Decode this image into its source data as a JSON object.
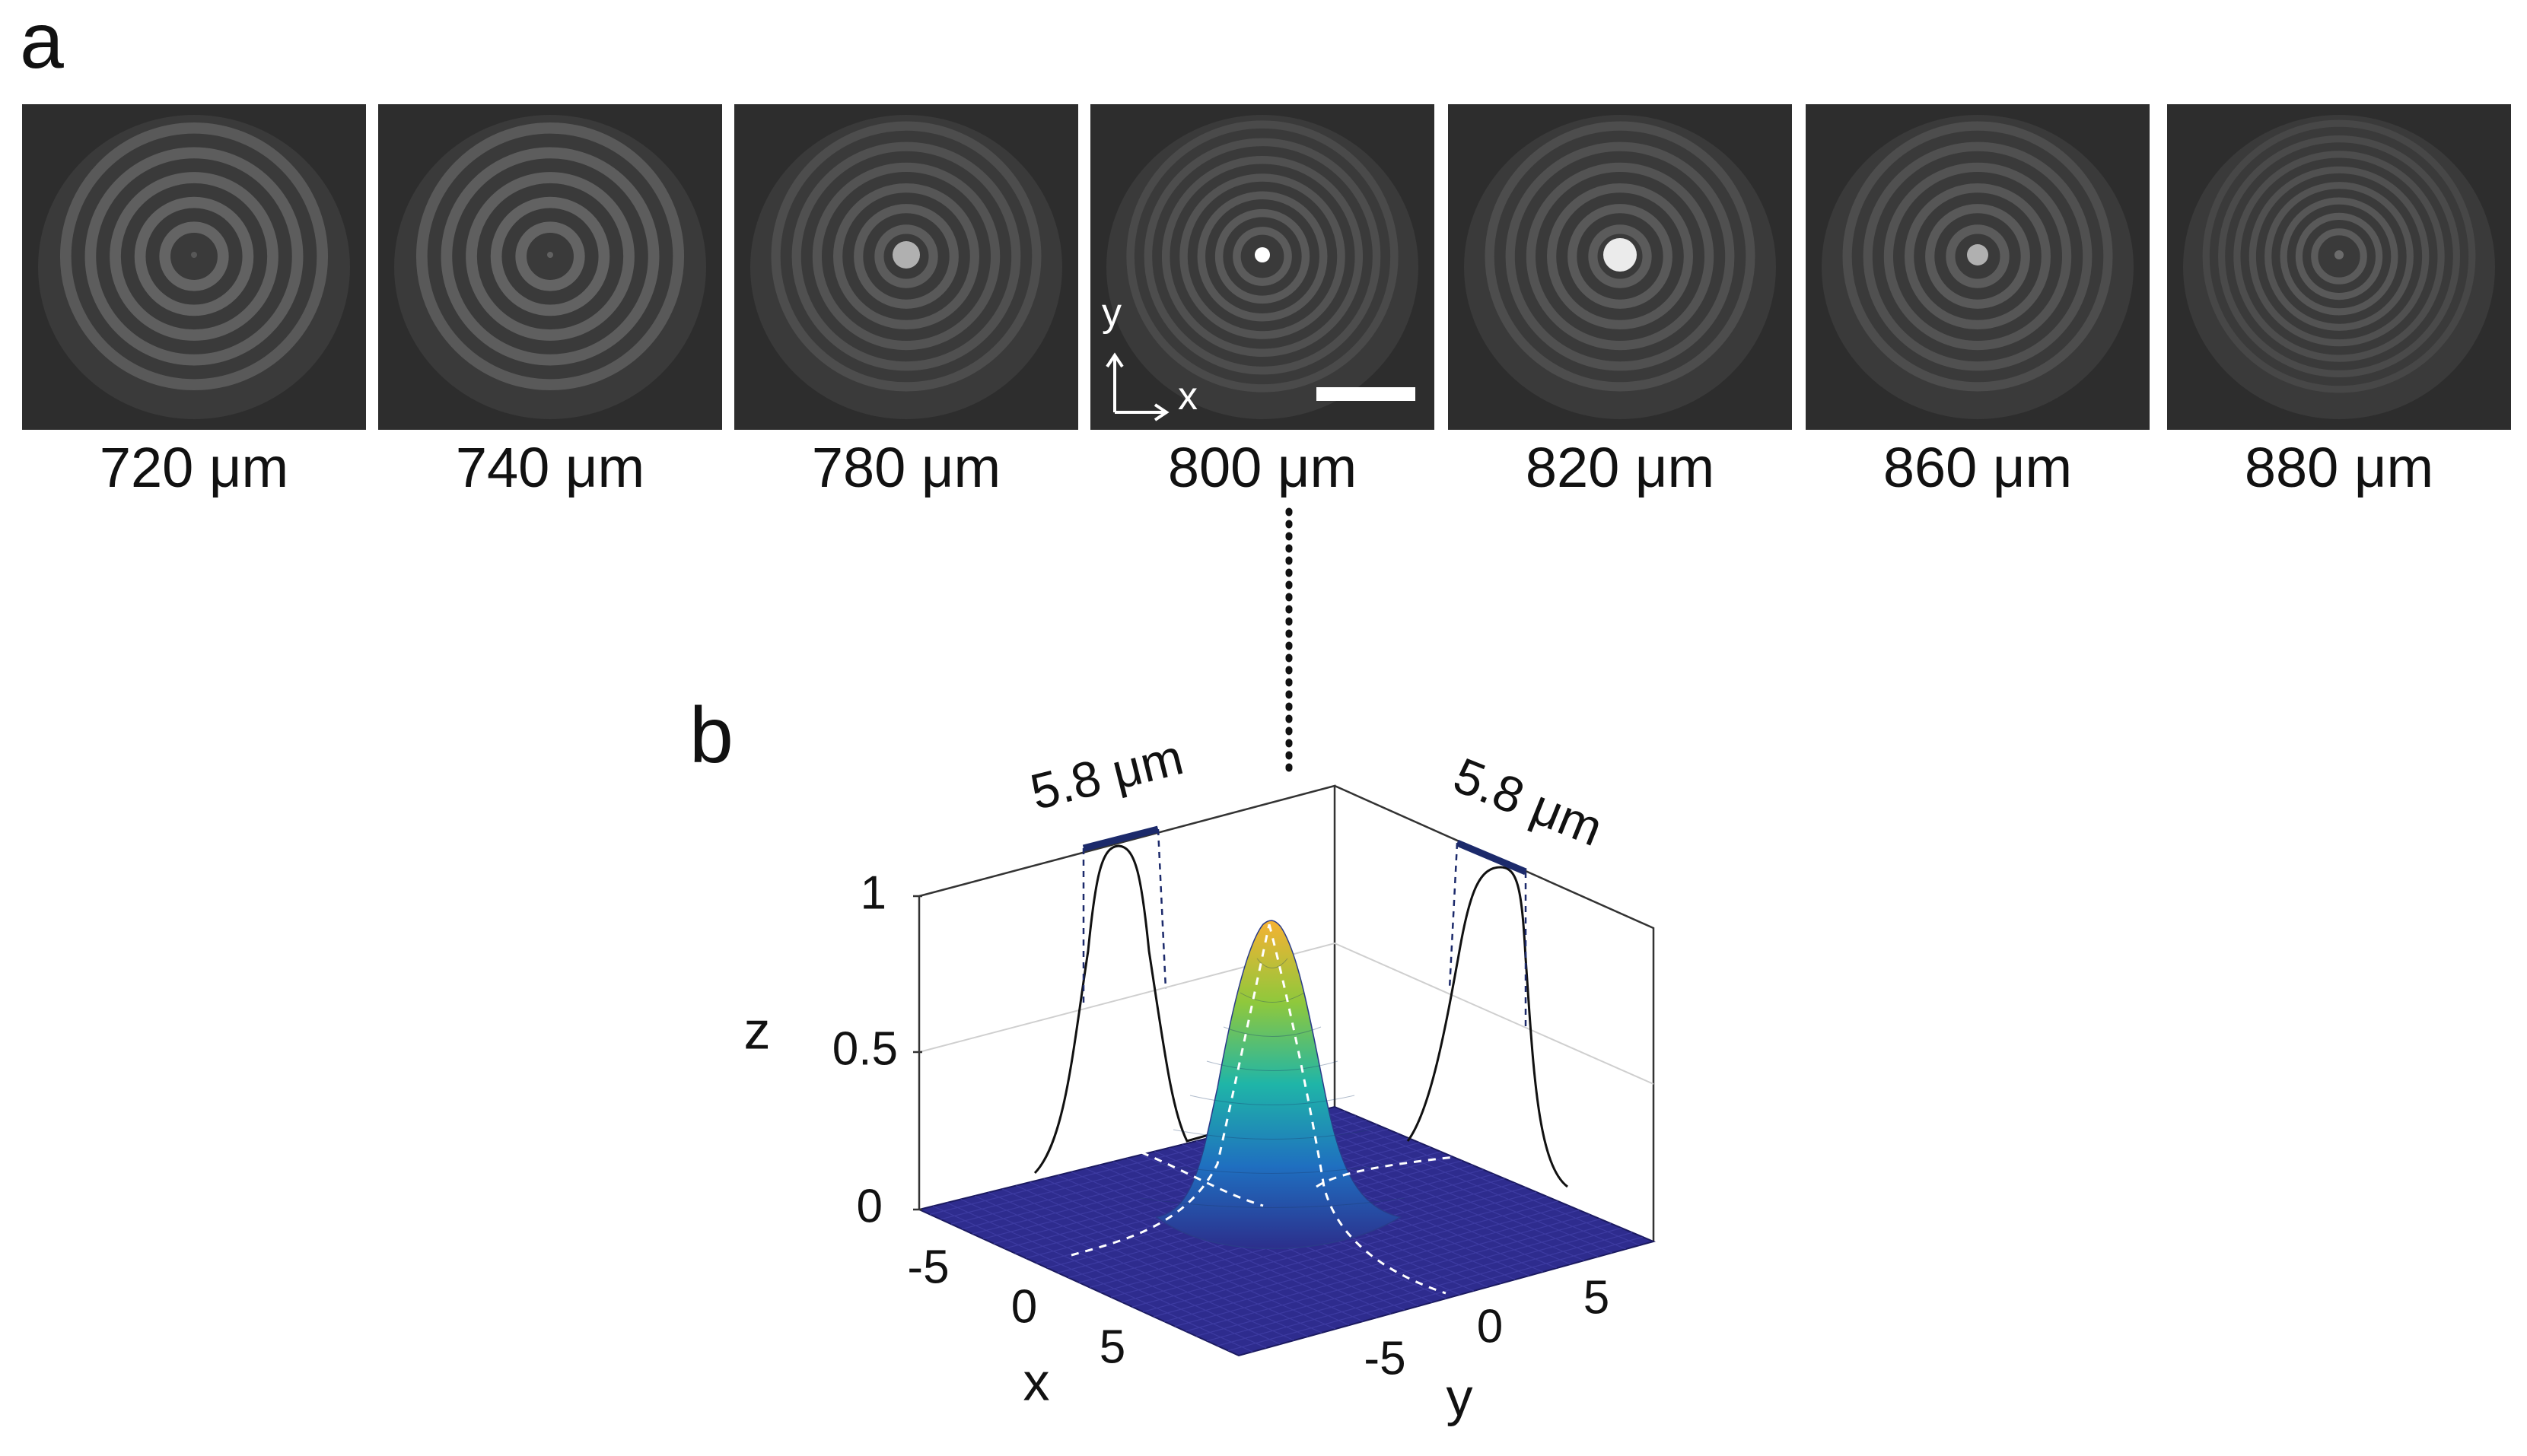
{
  "panel_a": {
    "letter": "a",
    "tiles": [
      {
        "label": "720 μm"
      },
      {
        "label": "740 μm"
      },
      {
        "label": "780 μm"
      },
      {
        "label": "800 μm"
      },
      {
        "label": "820 μm"
      },
      {
        "label": "860 μm"
      },
      {
        "label": "880 μm"
      }
    ],
    "axis_x": "x",
    "axis_y": "y"
  },
  "panel_b": {
    "letter": "b",
    "z_label": "z",
    "x_label": "x",
    "y_label": "y",
    "fwhm_x": "5.8 μm",
    "fwhm_y": "5.8 μm"
  },
  "chart_data": {
    "type": "surface",
    "description_axes": {
      "z_ticks": [
        "0",
        "0.5",
        "1"
      ],
      "x_ticks": [
        "-5",
        "0",
        "5"
      ],
      "y_ticks": [
        "-5",
        "0",
        "5"
      ]
    },
    "zlim": [
      0,
      1
    ],
    "xlim": [
      -8,
      8
    ],
    "ylim": [
      -8,
      8
    ],
    "peak": 1,
    "fwhm_x": 5.8,
    "fwhm_y": 5.8
  }
}
